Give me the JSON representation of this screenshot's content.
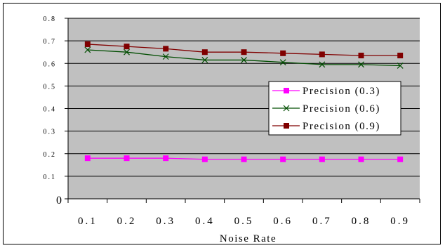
{
  "chart_data": {
    "type": "line",
    "x": [
      "0.1",
      "0.2",
      "0.3",
      "0.4",
      "0.5",
      "0.6",
      "0.7",
      "0.8",
      "0.9"
    ],
    "xlabel": "Noise Rate",
    "ylabel": "",
    "ylim": [
      0,
      0.8
    ],
    "y_ticks": [
      "0",
      "0.1",
      "0.2",
      "0.3",
      "0.4",
      "0.5",
      "0.6",
      "0.7",
      "0.8"
    ],
    "grid": "horizontal",
    "legend_position": "right",
    "plot_background": "#c0c0c0",
    "series": [
      {
        "name": "Precision (0.3)",
        "color": "#ff00ff",
        "marker": "square",
        "values": [
          0.18,
          0.18,
          0.18,
          0.175,
          0.175,
          0.175,
          0.175,
          0.175,
          0.175
        ]
      },
      {
        "name": "Precision (0.6)",
        "color": "#004d00",
        "marker": "x",
        "values": [
          0.66,
          0.65,
          0.63,
          0.615,
          0.615,
          0.605,
          0.595,
          0.595,
          0.59
        ]
      },
      {
        "name": "Precision (0.9)",
        "color": "#800000",
        "marker": "square",
        "values": [
          0.685,
          0.675,
          0.665,
          0.65,
          0.65,
          0.645,
          0.64,
          0.635,
          0.635
        ]
      }
    ]
  }
}
